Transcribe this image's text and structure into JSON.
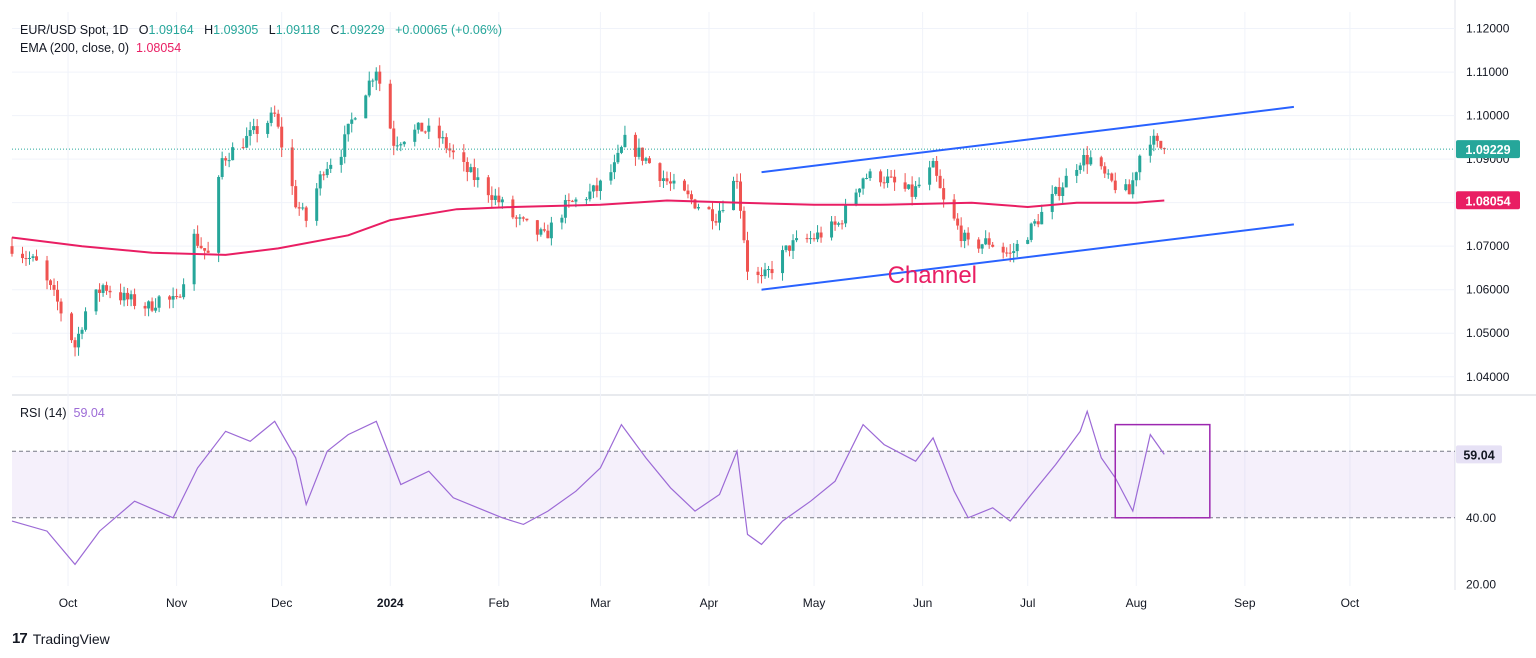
{
  "header": {
    "symbol": "EUR/USD Spot, 1D",
    "open_label": "O",
    "open": "1.09164",
    "high_label": "H",
    "high": "1.09305",
    "low_label": "L",
    "low": "1.09118",
    "close_label": "C",
    "close": "1.09229",
    "change": "+0.00065 (+0.06%)",
    "ema_label": "EMA (200, close, 0)",
    "ema_value": "1.08054",
    "rsi_label": "RSI (14)",
    "rsi_value": "59.04"
  },
  "brand": {
    "name": "TradingView"
  },
  "colors": {
    "up": "#26a69a",
    "down": "#ef5350",
    "ema": "#e91e63",
    "rsi": "#9c6ad6",
    "channel": "#2962ff",
    "annotation": "#e91e63",
    "box": "#9c27b0",
    "price_tag": "#26a69a"
  },
  "chart_data": {
    "type": "candlestick",
    "price_axis": {
      "ticks": [
        "1.12000",
        "1.11000",
        "1.10000",
        "1.09000",
        "1.08000",
        "1.07000",
        "1.06000",
        "1.05000",
        "1.04000"
      ],
      "ylim": [
        1.0365,
        1.1238
      ]
    },
    "rsi_axis": {
      "ticks": [
        "20.00",
        "40.00",
        "60.00"
      ],
      "ylim": [
        19.5,
        76
      ],
      "band": [
        40,
        60
      ]
    },
    "x_axis": {
      "labels": [
        "Oct",
        "Nov",
        "Dec",
        "2024",
        "Feb",
        "Mar",
        "Apr",
        "May",
        "Jun",
        "Jul",
        "Aug",
        "Sep",
        "Oct"
      ],
      "label_dates": [
        "2023-10-01",
        "2023-11-01",
        "2023-12-01",
        "2024-01-01",
        "2024-02-01",
        "2024-03-01",
        "2024-04-01",
        "2024-05-01",
        "2024-06-01",
        "2024-07-01",
        "2024-08-01",
        "2024-09-01",
        "2024-10-01"
      ],
      "range": [
        "2023-09-15",
        "2024-10-31"
      ]
    },
    "current_price": "1.09229",
    "ema_current": "1.08054",
    "rsi_current": "59.04",
    "ema_path": [
      [
        "2023-09-15",
        1.072
      ],
      [
        "2023-10-05",
        1.07
      ],
      [
        "2023-10-25",
        1.0685
      ],
      [
        "2023-11-15",
        1.068
      ],
      [
        "2023-11-30",
        1.0695
      ],
      [
        "2023-12-20",
        1.0725
      ],
      [
        "2024-01-01",
        1.076
      ],
      [
        "2024-01-20",
        1.0785
      ],
      [
        "2024-02-05",
        1.079
      ],
      [
        "2024-03-01",
        1.0795
      ],
      [
        "2024-03-20",
        1.0805
      ],
      [
        "2024-04-10",
        1.08
      ],
      [
        "2024-05-01",
        1.0795
      ],
      [
        "2024-05-20",
        1.0795
      ],
      [
        "2024-06-15",
        1.08
      ],
      [
        "2024-07-01",
        1.079
      ],
      [
        "2024-07-15",
        1.08
      ],
      [
        "2024-08-01",
        1.08
      ],
      [
        "2024-08-09",
        1.0805
      ]
    ],
    "price_path": [
      [
        "2023-09-15",
        1.07
      ],
      [
        "2023-09-22",
        1.066
      ],
      [
        "2023-09-28",
        1.057
      ],
      [
        "2023-10-03",
        1.047
      ],
      [
        "2023-10-06",
        1.055
      ],
      [
        "2023-10-11",
        1.061
      ],
      [
        "2023-10-17",
        1.058
      ],
      [
        "2023-10-24",
        1.056
      ],
      [
        "2023-10-27",
        1.058
      ],
      [
        "2023-11-01",
        1.057
      ],
      [
        "2023-11-06",
        1.072
      ],
      [
        "2023-11-10",
        1.068
      ],
      [
        "2023-11-14",
        1.09
      ],
      [
        "2023-11-20",
        1.094
      ],
      [
        "2023-11-29",
        1.1
      ],
      [
        "2023-12-05",
        1.08
      ],
      [
        "2023-12-08",
        1.076
      ],
      [
        "2023-12-13",
        1.088
      ],
      [
        "2023-12-18",
        1.092
      ],
      [
        "2023-12-22",
        1.101
      ],
      [
        "2023-12-28",
        1.111
      ],
      [
        "2024-01-02",
        1.094
      ],
      [
        "2024-01-10",
        1.097
      ],
      [
        "2024-01-15",
        1.095
      ],
      [
        "2024-01-22",
        1.088
      ],
      [
        "2024-01-30",
        1.082
      ],
      [
        "2024-02-06",
        1.076
      ],
      [
        "2024-02-14",
        1.072
      ],
      [
        "2024-02-20",
        1.079
      ],
      [
        "2024-02-29",
        1.083
      ],
      [
        "2024-03-05",
        1.088
      ],
      [
        "2024-03-08",
        1.094
      ],
      [
        "2024-03-14",
        1.09
      ],
      [
        "2024-03-21",
        1.084
      ],
      [
        "2024-03-28",
        1.08
      ],
      [
        "2024-04-03",
        1.077
      ],
      [
        "2024-04-09",
        1.086
      ],
      [
        "2024-04-12",
        1.065
      ],
      [
        "2024-04-16",
        1.062
      ],
      [
        "2024-04-24",
        1.07
      ],
      [
        "2024-05-01",
        1.072
      ],
      [
        "2024-05-08",
        1.075
      ],
      [
        "2024-05-15",
        1.086
      ],
      [
        "2024-05-20",
        1.086
      ],
      [
        "2024-05-29",
        1.082
      ],
      [
        "2024-06-04",
        1.088
      ],
      [
        "2024-06-07",
        1.08
      ],
      [
        "2024-06-14",
        1.07
      ],
      [
        "2024-06-20",
        1.071
      ],
      [
        "2024-06-26",
        1.068
      ],
      [
        "2024-07-02",
        1.074
      ],
      [
        "2024-07-09",
        1.082
      ],
      [
        "2024-07-16",
        1.09
      ],
      [
        "2024-07-19",
        1.09
      ],
      [
        "2024-07-24",
        1.085
      ],
      [
        "2024-07-30",
        1.082
      ],
      [
        "2024-08-02",
        1.091
      ],
      [
        "2024-08-05",
        1.095
      ],
      [
        "2024-08-07",
        1.093
      ],
      [
        "2024-08-09",
        1.0923
      ]
    ],
    "channel": {
      "label": "Channel",
      "upper": [
        [
          "2024-04-16",
          1.087
        ],
        [
          "2024-09-15",
          1.102
        ]
      ],
      "lower": [
        [
          "2024-04-16",
          1.06
        ],
        [
          "2024-09-15",
          1.075
        ]
      ]
    },
    "rsi_path": [
      [
        "2023-09-15",
        39
      ],
      [
        "2023-09-25",
        36
      ],
      [
        "2023-10-03",
        26
      ],
      [
        "2023-10-10",
        36
      ],
      [
        "2023-10-20",
        45
      ],
      [
        "2023-10-31",
        40
      ],
      [
        "2023-11-07",
        55
      ],
      [
        "2023-11-15",
        66
      ],
      [
        "2023-11-22",
        63
      ],
      [
        "2023-11-29",
        69
      ],
      [
        "2023-12-05",
        58
      ],
      [
        "2023-12-08",
        44
      ],
      [
        "2023-12-14",
        60
      ],
      [
        "2023-12-20",
        65
      ],
      [
        "2023-12-28",
        69
      ],
      [
        "2024-01-04",
        50
      ],
      [
        "2024-01-12",
        54
      ],
      [
        "2024-01-19",
        46
      ],
      [
        "2024-01-26",
        43
      ],
      [
        "2024-02-02",
        40
      ],
      [
        "2024-02-08",
        38
      ],
      [
        "2024-02-15",
        42
      ],
      [
        "2024-02-23",
        48
      ],
      [
        "2024-03-01",
        55
      ],
      [
        "2024-03-07",
        68
      ],
      [
        "2024-03-14",
        58
      ],
      [
        "2024-03-21",
        49
      ],
      [
        "2024-03-28",
        42
      ],
      [
        "2024-04-04",
        47
      ],
      [
        "2024-04-09",
        60
      ],
      [
        "2024-04-12",
        35
      ],
      [
        "2024-04-16",
        32
      ],
      [
        "2024-04-22",
        39
      ],
      [
        "2024-04-30",
        45
      ],
      [
        "2024-05-07",
        51
      ],
      [
        "2024-05-15",
        68
      ],
      [
        "2024-05-21",
        62
      ],
      [
        "2024-05-30",
        57
      ],
      [
        "2024-06-04",
        64
      ],
      [
        "2024-06-10",
        48
      ],
      [
        "2024-06-14",
        40
      ],
      [
        "2024-06-21",
        43
      ],
      [
        "2024-06-26",
        39
      ],
      [
        "2024-07-02",
        47
      ],
      [
        "2024-07-09",
        56
      ],
      [
        "2024-07-16",
        66
      ],
      [
        "2024-07-18",
        72
      ],
      [
        "2024-07-22",
        58
      ],
      [
        "2024-07-26",
        52
      ],
      [
        "2024-07-31",
        42
      ],
      [
        "2024-08-05",
        65
      ],
      [
        "2024-08-09",
        59.04
      ]
    ],
    "rsi_box": {
      "from": [
        "2024-07-26",
        68
      ],
      "to": [
        "2024-08-22",
        40
      ]
    }
  }
}
